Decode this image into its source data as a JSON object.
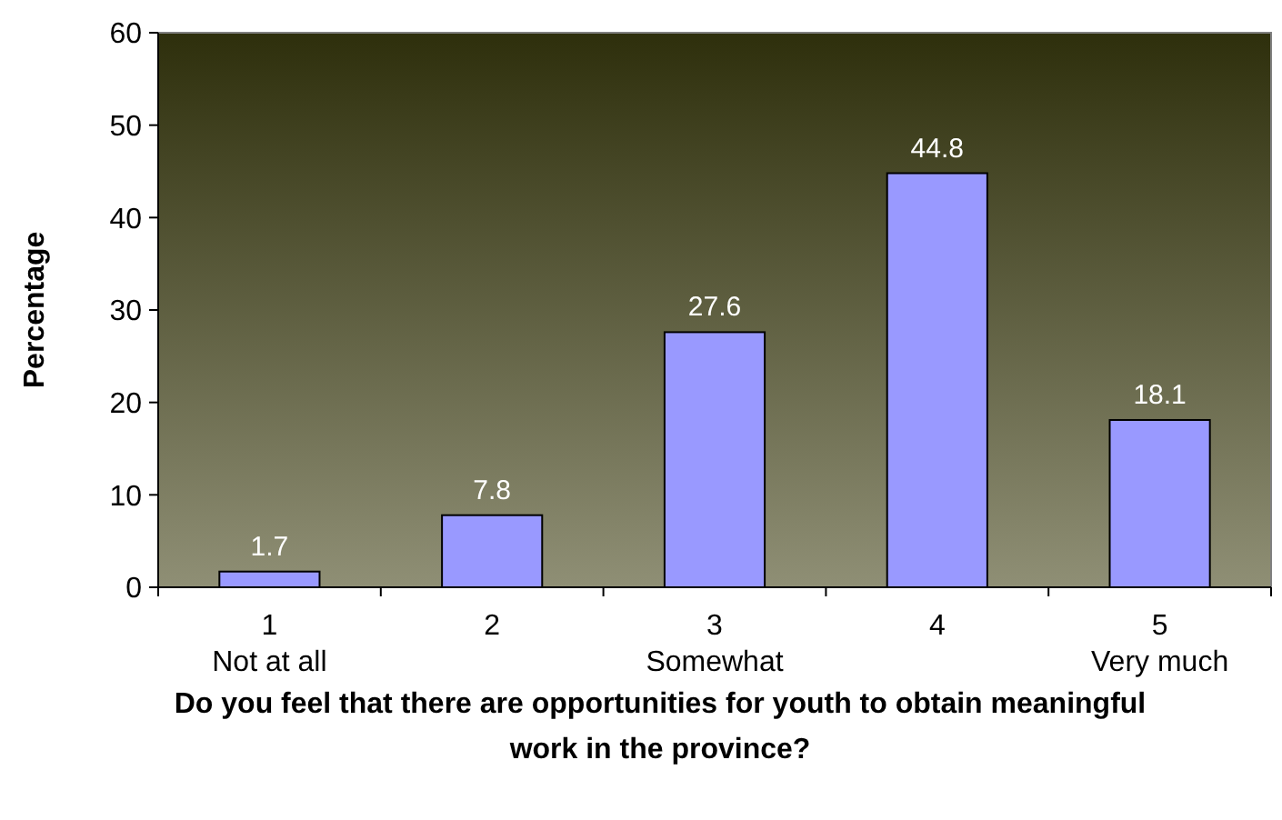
{
  "chart_data": {
    "type": "bar",
    "xlabel": "Do you feel that there are opportunities for youth to obtain meaningful work in the province?",
    "ylabel": "Percentage",
    "categories": [
      "1\nNot at all",
      "2",
      "3\nSomewhat",
      "4",
      "5\nVery much"
    ],
    "values": [
      1.7,
      7.8,
      27.6,
      44.8,
      18.1
    ],
    "color": "#9999ff",
    "ylim": [
      0,
      60
    ],
    "yticks": [
      0,
      10,
      20,
      30,
      40,
      50,
      60
    ],
    "data_labels": true
  }
}
